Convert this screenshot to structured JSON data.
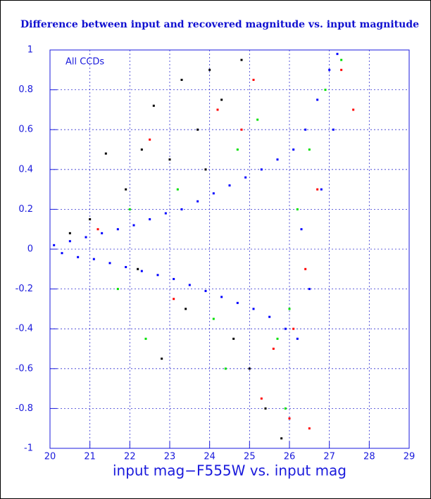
{
  "chart_data": {
    "type": "scatter",
    "title": "Difference between input and recovered magnitude vs. input magnitude",
    "x_label": "input mag−F555W vs. input mag",
    "annotation": "All CCDs",
    "xlim": [
      20,
      29
    ],
    "ylim": [
      -1,
      1
    ],
    "xticks": [
      20,
      21,
      22,
      23,
      24,
      25,
      26,
      27,
      28,
      29
    ],
    "yticks": [
      -1,
      -0.8,
      -0.6,
      -0.4,
      -0.2,
      0,
      0.2,
      0.4,
      0.6,
      0.8,
      1
    ],
    "grid": true,
    "series": [
      {
        "color": "#000000",
        "x": [
          20.5,
          21.0,
          21.4,
          21.9,
          22.3,
          22.6,
          23.0,
          23.3,
          23.7,
          24.0,
          24.3,
          22.2,
          23.4,
          24.6,
          25.0,
          25.4,
          25.8,
          22.8,
          23.9,
          24.8
        ],
        "values": [
          0.08,
          0.15,
          0.48,
          0.3,
          0.5,
          0.72,
          0.45,
          0.85,
          0.6,
          0.9,
          0.75,
          -0.1,
          -0.3,
          -0.45,
          -0.6,
          -0.8,
          -0.95,
          -0.55,
          0.4,
          0.95
        ]
      },
      {
        "color": "#00e000",
        "x": [
          21.7,
          22.4,
          23.2,
          24.1,
          24.7,
          25.2,
          25.7,
          26.2,
          26.5,
          26.9,
          27.3,
          25.9,
          24.4,
          26.0,
          22.0
        ],
        "values": [
          -0.2,
          -0.45,
          0.3,
          -0.35,
          0.5,
          0.65,
          -0.45,
          0.2,
          0.5,
          0.8,
          0.95,
          -0.8,
          -0.6,
          -0.3,
          0.2
        ]
      },
      {
        "color": "#ff0000",
        "x": [
          21.2,
          22.5,
          23.1,
          24.2,
          25.1,
          25.6,
          26.1,
          26.4,
          26.7,
          27.3,
          27.6,
          25.3,
          26.0,
          24.8,
          26.5
        ],
        "values": [
          0.1,
          0.55,
          -0.25,
          0.7,
          0.85,
          -0.5,
          -0.4,
          -0.1,
          0.3,
          0.9,
          0.7,
          -0.75,
          -0.85,
          0.6,
          -0.9
        ]
      },
      {
        "color": "#0000ff",
        "x": [
          20.1,
          20.5,
          20.9,
          21.3,
          21.7,
          22.1,
          22.5,
          22.9,
          23.3,
          23.7,
          24.1,
          24.5,
          24.9,
          25.3,
          25.7,
          26.1,
          26.4,
          26.7,
          27.0,
          27.2,
          20.3,
          20.7,
          21.1,
          21.5,
          21.9,
          22.3,
          22.7,
          23.1,
          23.5,
          23.9,
          24.3,
          24.7,
          25.1,
          25.5,
          25.9,
          26.2,
          26.5,
          26.8,
          27.1,
          26.3
        ],
        "values": [
          0.02,
          0.04,
          0.06,
          0.08,
          0.1,
          0.12,
          0.15,
          0.18,
          0.2,
          0.24,
          0.28,
          0.32,
          0.36,
          0.4,
          0.45,
          0.5,
          0.6,
          0.75,
          0.9,
          0.98,
          -0.02,
          -0.04,
          -0.05,
          -0.07,
          -0.09,
          -0.11,
          -0.13,
          -0.15,
          -0.18,
          -0.21,
          -0.24,
          -0.27,
          -0.3,
          -0.34,
          -0.4,
          -0.45,
          -0.2,
          0.3,
          0.6,
          0.1
        ]
      }
    ]
  }
}
